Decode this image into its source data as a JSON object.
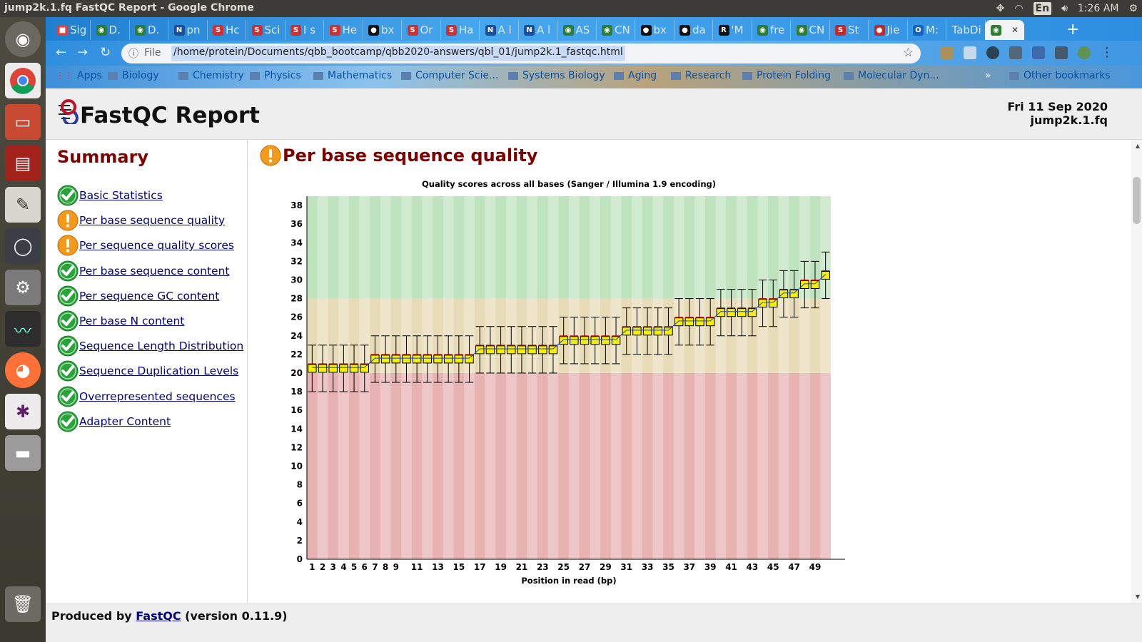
{
  "window": {
    "title": "jump2k.1.fq FastQC Report - Google Chrome"
  },
  "system_tray": {
    "keyboard_layout": "En",
    "time": "1:26 AM"
  },
  "browser": {
    "tabs": [
      {
        "label": "Sig",
        "icon": "microsoft-icon",
        "color": "#e0413a"
      },
      {
        "label": "D.",
        "icon": "chrome-icon",
        "color": "#2e7d32"
      },
      {
        "label": "D.",
        "icon": "chrome-icon",
        "color": "#2e7d32"
      },
      {
        "label": "pn",
        "icon": "nih-icon",
        "color": "#1b4f9a"
      },
      {
        "label": "Hc",
        "icon": "scribd-icon",
        "color": "#d32f2f"
      },
      {
        "label": "Sci",
        "icon": "scribd-icon",
        "color": "#d32f2f"
      },
      {
        "label": "I s",
        "icon": "scribd-icon",
        "color": "#d32f2f"
      },
      {
        "label": "He",
        "icon": "scribd-icon",
        "color": "#d32f2f"
      },
      {
        "label": "bx",
        "icon": "github-icon",
        "color": "#111111"
      },
      {
        "label": "Or",
        "icon": "scribd-icon",
        "color": "#d32f2f"
      },
      {
        "label": "Ha",
        "icon": "scribd-icon",
        "color": "#d32f2f"
      },
      {
        "label": "A l",
        "icon": "nih-icon",
        "color": "#1b4f9a"
      },
      {
        "label": "A l",
        "icon": "nih-icon",
        "color": "#1b4f9a"
      },
      {
        "label": "AS",
        "icon": "chrome-icon",
        "color": "#2e7d32"
      },
      {
        "label": "CN",
        "icon": "chrome-icon",
        "color": "#2e7d32"
      },
      {
        "label": "bx",
        "icon": "github-icon",
        "color": "#111111"
      },
      {
        "label": "da",
        "icon": "github-icon",
        "color": "#111111"
      },
      {
        "label": "'M",
        "icon": "r-icon",
        "color": "#111111"
      },
      {
        "label": "fre",
        "icon": "chrome-icon",
        "color": "#2e7d32"
      },
      {
        "label": "CN",
        "icon": "chrome-icon",
        "color": "#2e7d32"
      },
      {
        "label": "St",
        "icon": "s-icon",
        "color": "#c62828"
      },
      {
        "label": "Jie",
        "icon": "circle-icon",
        "color": "#c62828"
      },
      {
        "label": "M:",
        "icon": "outlook-icon",
        "color": "#1565c0"
      },
      {
        "label": "TabDi",
        "icon": "",
        "color": ""
      },
      {
        "label": "",
        "icon": "chrome-icon",
        "color": "#2e7d32",
        "active": true
      }
    ],
    "address": {
      "scheme_label": "File",
      "url": "/home/protein/Documents/qbb_bootcamp/qbb2020-answers/qbl_01/jump2k.1_fastqc.html"
    },
    "bookmarks": [
      {
        "label": "Apps",
        "icon": "apps-icon"
      },
      {
        "label": "Biology",
        "icon": "folder-icon"
      },
      {
        "label": "Chemistry",
        "icon": "folder-icon"
      },
      {
        "label": "Physics",
        "icon": "folder-icon"
      },
      {
        "label": "Mathematics",
        "icon": "folder-icon"
      },
      {
        "label": "Computer Scie...",
        "icon": "folder-icon"
      },
      {
        "label": "Systems Biology",
        "icon": "folder-icon"
      },
      {
        "label": "Aging",
        "icon": "folder-icon"
      },
      {
        "label": "Research",
        "icon": "folder-icon"
      },
      {
        "label": "Protein Folding",
        "icon": "folder-icon"
      },
      {
        "label": "Molecular Dyn...",
        "icon": "folder-icon"
      }
    ],
    "bookmarks_overflow": "»",
    "other_bookmarks": "Other bookmarks"
  },
  "report": {
    "title": "FastQC Report",
    "date": "Fri 11 Sep 2020",
    "filename": "jump2k.1.fq",
    "summary_heading": "Summary",
    "modules": [
      {
        "label": "Basic Statistics",
        "status": "pass"
      },
      {
        "label": "Per base sequence quality",
        "status": "warn"
      },
      {
        "label": "Per sequence quality scores",
        "status": "warn"
      },
      {
        "label": "Per base sequence content",
        "status": "pass"
      },
      {
        "label": "Per sequence GC content",
        "status": "pass"
      },
      {
        "label": "Per base N content",
        "status": "pass"
      },
      {
        "label": "Sequence Length Distribution",
        "status": "pass"
      },
      {
        "label": "Sequence Duplication Levels",
        "status": "pass"
      },
      {
        "label": "Overrepresented sequences",
        "status": "pass"
      },
      {
        "label": "Adapter Content",
        "status": "pass"
      }
    ],
    "current_module": "Per base sequence quality",
    "footer": {
      "prefix": "Produced by",
      "link": "FastQC",
      "suffix": "(version 0.11.9)"
    }
  },
  "colors": {
    "pass": "#2aa33b",
    "warn": "#f39a1a",
    "heading": "#800000",
    "link": "#000080"
  },
  "chart_data": {
    "type": "box",
    "title": "Quality scores across all bases (Sanger / Illumina 1.9 encoding)",
    "xlabel": "Position in read (bp)",
    "ylabel": "",
    "ylim": [
      0,
      39
    ],
    "ytick_labels": [
      "0",
      "2",
      "4",
      "6",
      "8",
      "10",
      "12",
      "14",
      "16",
      "18",
      "20",
      "22",
      "24",
      "26",
      "28",
      "30",
      "32",
      "34",
      "36",
      "38"
    ],
    "xtick_labels": [
      "1",
      "2",
      "3",
      "4",
      "5",
      "6",
      "7",
      "8",
      "9",
      "11",
      "13",
      "15",
      "17",
      "19",
      "21",
      "23",
      "25",
      "27",
      "29",
      "31",
      "33",
      "35",
      "37",
      "39",
      "41",
      "43",
      "45",
      "47",
      "49"
    ],
    "bands": [
      {
        "from": 0,
        "to": 20,
        "color": "#e6b2b2"
      },
      {
        "from": 20,
        "to": 28,
        "color": "#e8dcb8"
      },
      {
        "from": 28,
        "to": 39,
        "color": "#bfe3bf"
      }
    ],
    "positions": [
      1,
      2,
      3,
      4,
      5,
      6,
      7,
      8,
      9,
      10,
      11,
      12,
      13,
      14,
      15,
      16,
      17,
      18,
      19,
      20,
      21,
      22,
      23,
      24,
      25,
      26,
      27,
      28,
      29,
      30,
      31,
      32,
      33,
      34,
      35,
      36,
      37,
      38,
      39,
      40,
      41,
      42,
      43,
      44,
      45,
      46,
      47,
      48,
      49,
      50
    ],
    "mean": [
      20.6,
      20.6,
      20.6,
      20.6,
      20.6,
      20.6,
      21.6,
      21.6,
      21.6,
      21.6,
      21.6,
      21.6,
      21.6,
      21.6,
      21.6,
      21.6,
      22.6,
      22.6,
      22.6,
      22.6,
      22.6,
      22.6,
      22.6,
      22.6,
      23.6,
      23.6,
      23.6,
      23.6,
      23.6,
      23.6,
      24.6,
      24.6,
      24.6,
      24.6,
      24.6,
      25.6,
      25.6,
      25.6,
      25.6,
      26.6,
      26.6,
      26.6,
      26.6,
      27.6,
      27.6,
      28.6,
      28.6,
      29.6,
      29.6,
      30.6
    ],
    "median": [
      21,
      21,
      21,
      21,
      21,
      21,
      22,
      22,
      22,
      22,
      22,
      22,
      22,
      22,
      22,
      22,
      23,
      23,
      23,
      23,
      23,
      23,
      23,
      23,
      24,
      24,
      24,
      24,
      24,
      24,
      25,
      25,
      25,
      25,
      25,
      26,
      26,
      26,
      26,
      27,
      27,
      27,
      27,
      28,
      28,
      29,
      29,
      30,
      30,
      31
    ],
    "q1": [
      20,
      20,
      20,
      20,
      20,
      20,
      21,
      21,
      21,
      21,
      21,
      21,
      21,
      21,
      21,
      21,
      22,
      22,
      22,
      22,
      22,
      22,
      22,
      22,
      23,
      23,
      23,
      23,
      23,
      23,
      24,
      24,
      24,
      24,
      24,
      25,
      25,
      25,
      25,
      26,
      26,
      26,
      26,
      27,
      27,
      28,
      28,
      29,
      29,
      30
    ],
    "q3": [
      21,
      21,
      21,
      21,
      21,
      21,
      22,
      22,
      22,
      22,
      22,
      22,
      22,
      22,
      22,
      22,
      23,
      23,
      23,
      23,
      23,
      23,
      23,
      23,
      24,
      24,
      24,
      24,
      24,
      24,
      25,
      25,
      25,
      25,
      25,
      26,
      26,
      26,
      26,
      27,
      27,
      27,
      27,
      28,
      28,
      29,
      29,
      30,
      30,
      31
    ],
    "p10": [
      18,
      18,
      18,
      18,
      18,
      18,
      19,
      19,
      19,
      19,
      19,
      19,
      19,
      19,
      19,
      19,
      20,
      20,
      20,
      20,
      20,
      20,
      20,
      20,
      21,
      21,
      21,
      21,
      21,
      21,
      22,
      22,
      22,
      22,
      22,
      23,
      23,
      23,
      23,
      24,
      24,
      24,
      24,
      25,
      25,
      26,
      26,
      27,
      27,
      28
    ],
    "p90": [
      23,
      23,
      23,
      23,
      23,
      23,
      24,
      24,
      24,
      24,
      24,
      24,
      24,
      24,
      24,
      24,
      25,
      25,
      25,
      25,
      25,
      25,
      25,
      25,
      26,
      26,
      26,
      26,
      26,
      26,
      27,
      27,
      27,
      27,
      27,
      28,
      28,
      28,
      28,
      29,
      29,
      29,
      29,
      30,
      30,
      31,
      31,
      32,
      32,
      33
    ],
    "legend": "none"
  }
}
